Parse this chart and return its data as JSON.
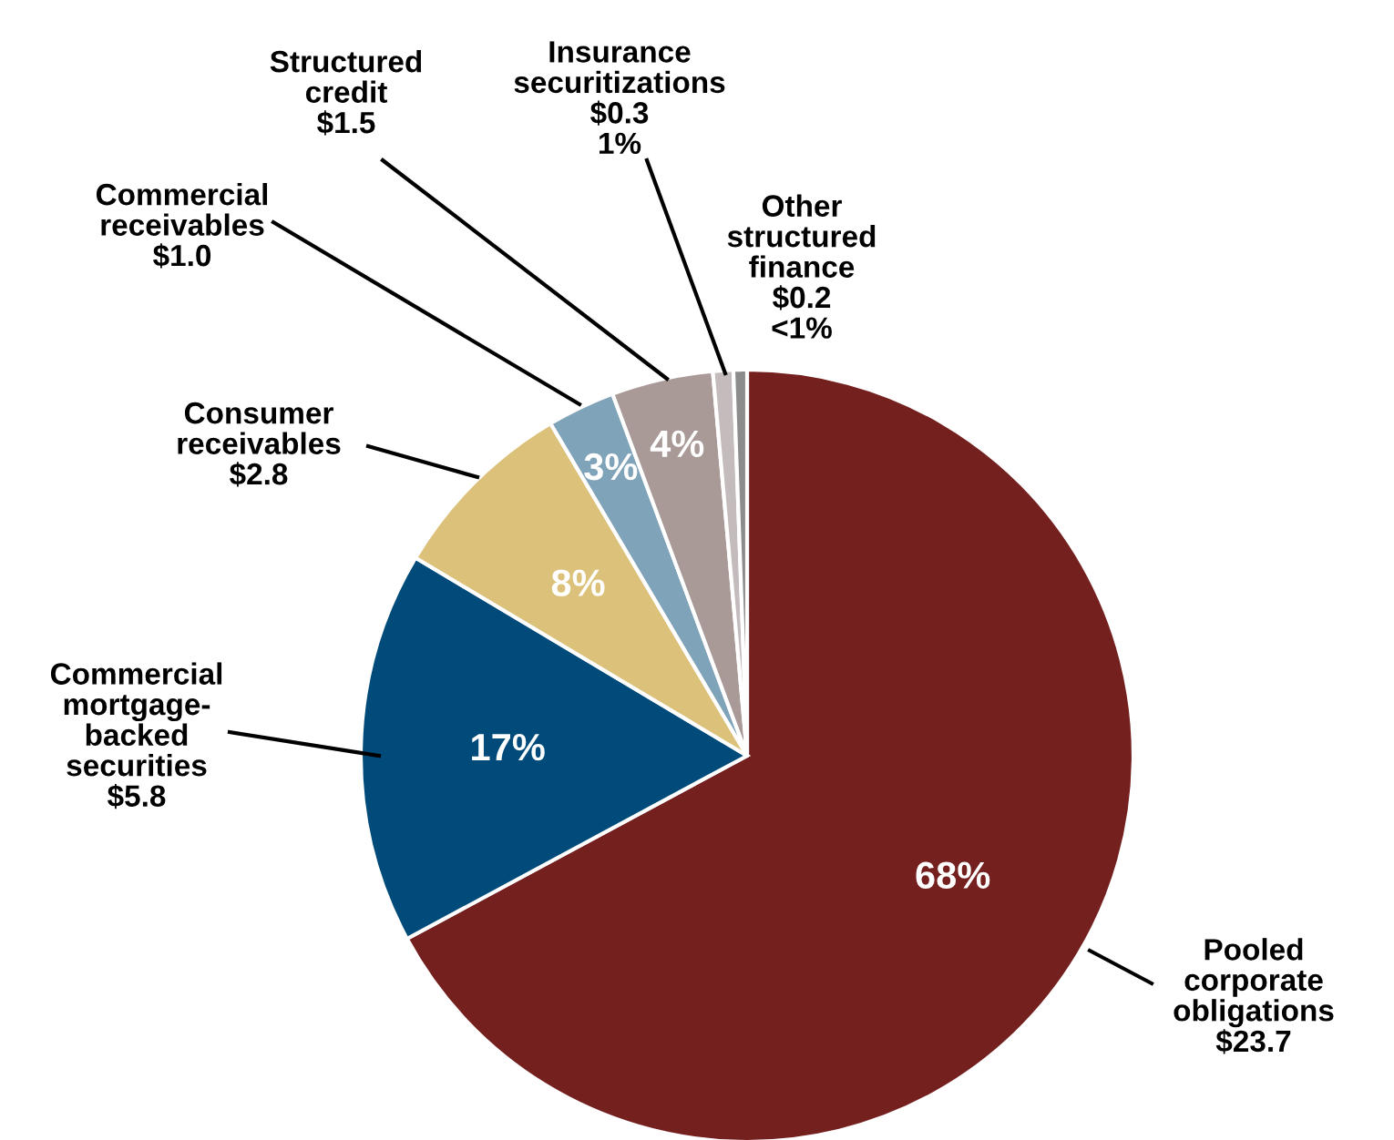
{
  "chart_data": {
    "type": "pie",
    "categories": [
      "Pooled\ncorporate\nobligations",
      "Commercial\nmortgage-\nbacked\nsecurities",
      "Consumer\nreceivables",
      "Commercial\nreceivables",
      "Structured\ncredit",
      "Insurance\nsecuritizations",
      "Other\nstructured\nfinance"
    ],
    "values": [
      23.7,
      5.8,
      2.8,
      1.0,
      1.5,
      0.3,
      0.2
    ],
    "colors": [
      "#74201f",
      "#004b7a",
      "#dcc17a",
      "#7fa3b9",
      "#a99a97",
      "#c4bcbc",
      "#8c8c8c"
    ],
    "value_labels": [
      "$23.7",
      "$5.8",
      "$2.8",
      "$1.0",
      "$1.5",
      "$0.3",
      "$0.2"
    ],
    "annotations": [
      "68%",
      "17%",
      "8%",
      "3%",
      "4%",
      "1%",
      "<1%"
    ]
  }
}
